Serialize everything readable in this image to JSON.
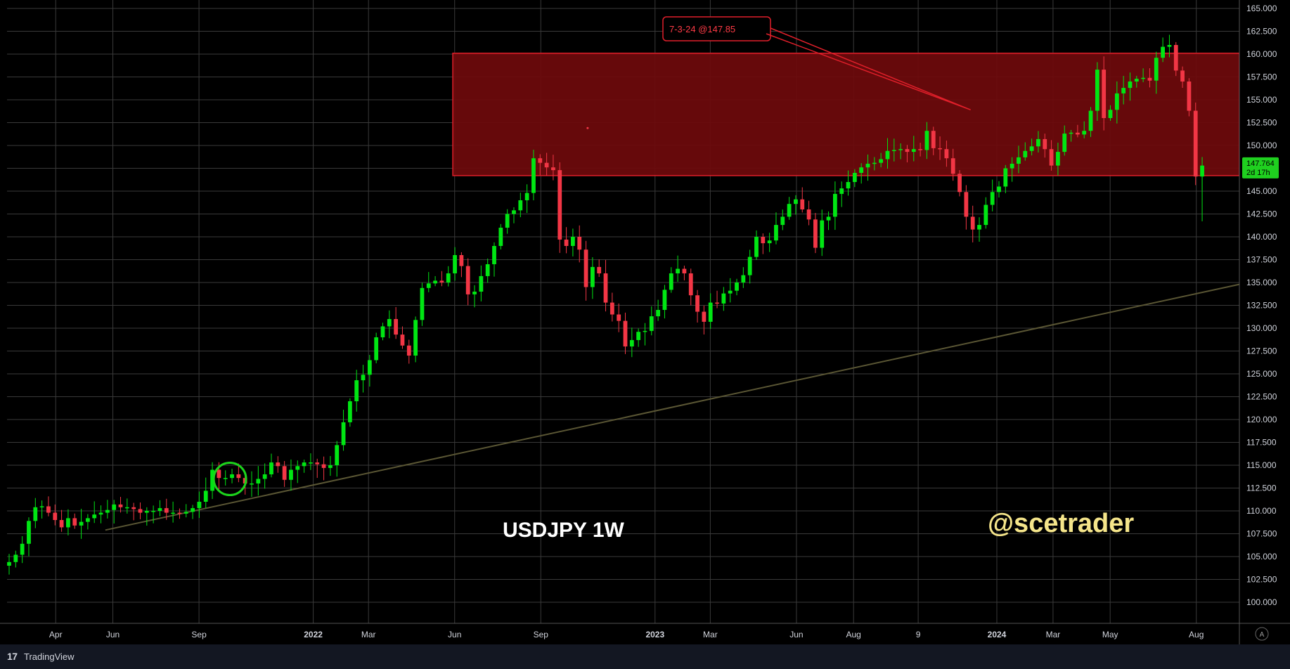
{
  "symbol_label": "USDJPY 1W",
  "watermark": "@scetrader",
  "branding": {
    "logo": "17",
    "name": "TradingView"
  },
  "annotation": {
    "text": "7-3-24 @147.85",
    "ref_date": "2023-12-04",
    "ref_price": 153.9
  },
  "price_tag": {
    "price": "147.764",
    "countdown": "2d 17h"
  },
  "colors": {
    "up": "#00e613",
    "down": "#f23645",
    "zone_fill": "#6f0a0c",
    "zone_border": "#e01f2a",
    "trendline": "#5a5634",
    "circle": "#1cd41c",
    "grid": "#3a3a3a",
    "watermark": "#f5e58a",
    "axis_text": "#d1d4dc",
    "tag_bg": "#1fd01f"
  },
  "chart_data": {
    "type": "candlestick",
    "timeframe": "1W",
    "ylim": [
      97.5,
      165.5
    ],
    "xlim": [
      "2021-02-08",
      "2024-09-16"
    ],
    "y_ticks": [
      "165.000",
      "162.500",
      "160.000",
      "157.500",
      "155.000",
      "152.500",
      "150.000",
      "147.500",
      "145.000",
      "142.500",
      "140.000",
      "137.500",
      "135.000",
      "132.500",
      "130.000",
      "127.500",
      "125.000",
      "122.500",
      "120.000",
      "117.500",
      "115.000",
      "112.500",
      "110.000",
      "107.500",
      "105.000",
      "102.500",
      "100.000"
    ],
    "x_ticks": [
      {
        "label": "Apr",
        "date": "2021-04-01"
      },
      {
        "label": "Jun",
        "date": "2021-06-01"
      },
      {
        "label": "Sep",
        "date": "2021-09-01"
      },
      {
        "label": "2022",
        "date": "2022-01-01"
      },
      {
        "label": "Mar",
        "date": "2022-03-01"
      },
      {
        "label": "Jun",
        "date": "2022-06-01"
      },
      {
        "label": "Sep",
        "date": "2022-09-01"
      },
      {
        "label": "2023",
        "date": "2023-01-01"
      },
      {
        "label": "Mar",
        "date": "2023-03-01"
      },
      {
        "label": "Jun",
        "date": "2023-06-01"
      },
      {
        "label": "Aug",
        "date": "2023-08-01"
      },
      {
        "label": "9",
        "date": "2023-10-09"
      },
      {
        "label": "2024",
        "date": "2024-01-01"
      },
      {
        "label": "Mar",
        "date": "2024-03-01"
      },
      {
        "label": "May",
        "date": "2024-05-01"
      },
      {
        "label": "Aug",
        "date": "2024-08-01"
      }
    ],
    "resistance_zone": {
      "from_date": "2022-05-30",
      "to_date": "2024-09-16",
      "low": 146.7,
      "high": 160.1
    },
    "trendline": {
      "start": [
        "2021-05-24",
        107.9
      ],
      "end": [
        "2024-09-16",
        134.8
      ]
    },
    "highlight_circle": {
      "date": "2021-10-04",
      "price": 113.5
    },
    "marker": {
      "date": "2022-10-21",
      "price": 151.9
    },
    "weekly_closes": [
      104.4,
      105.2,
      106.4,
      108.9,
      110.4,
      110.5,
      109.8,
      109.0,
      108.2,
      109.2,
      108.4,
      108.8,
      109.2,
      109.6,
      109.8,
      110.1,
      110.7,
      110.4,
      110.4,
      110.2,
      109.8,
      110.0,
      110.0,
      110.3,
      109.8,
      109.8,
      109.7,
      109.9,
      110.3,
      111.0,
      112.2,
      114.5,
      113.6,
      113.6,
      114.0,
      113.6,
      113.0,
      113.0,
      113.5,
      114.0,
      115.3,
      114.9,
      113.4,
      114.5,
      114.9,
      115.3,
      115.3,
      115.1,
      114.7,
      115.0,
      117.2,
      119.7,
      122.0,
      124.3,
      124.9,
      126.5,
      129.0,
      130.2,
      131.0,
      129.3,
      128.1,
      127.0,
      130.9,
      134.4,
      134.9,
      135.2,
      135.0,
      136.0,
      138.0,
      136.8,
      133.7,
      134.0,
      135.7,
      137.0,
      139.0,
      141.0,
      142.5,
      142.9,
      144.0,
      144.8,
      148.6,
      148.1,
      147.6,
      147.3,
      139.7,
      139.0,
      140.0,
      138.6,
      134.5,
      136.7,
      136.0,
      132.8,
      131.5,
      130.8,
      128.0,
      128.7,
      129.6,
      129.7,
      131.3,
      132.0,
      134.2,
      136.0,
      136.5,
      136.0,
      133.6,
      131.8,
      130.7,
      132.8,
      132.7,
      133.8,
      134.1,
      135.0,
      135.8,
      137.8,
      140.0,
      139.3,
      139.6,
      141.3,
      142.2,
      143.6,
      144.1,
      143.0,
      141.9,
      138.8,
      141.8,
      142.2,
      144.7,
      145.3,
      146.0,
      147.0,
      147.6,
      148.0,
      148.1,
      148.5,
      149.4,
      149.5,
      149.6,
      149.3,
      149.6,
      149.5,
      151.6,
      149.7,
      149.6,
      148.6,
      146.9,
      144.9,
      142.2,
      140.8,
      141.3,
      143.5,
      144.9,
      145.5,
      147.5,
      148.0,
      148.7,
      149.4,
      149.9,
      150.7,
      149.6,
      147.8,
      149.3,
      151.3,
      151.4,
      151.2,
      151.6,
      153.8,
      158.3,
      153.0,
      153.9,
      155.7,
      156.3,
      157.0,
      157.3,
      157.4,
      157.1,
      159.6,
      160.8,
      161.0,
      158.2,
      157.0,
      153.8,
      146.6,
      147.8
    ]
  }
}
